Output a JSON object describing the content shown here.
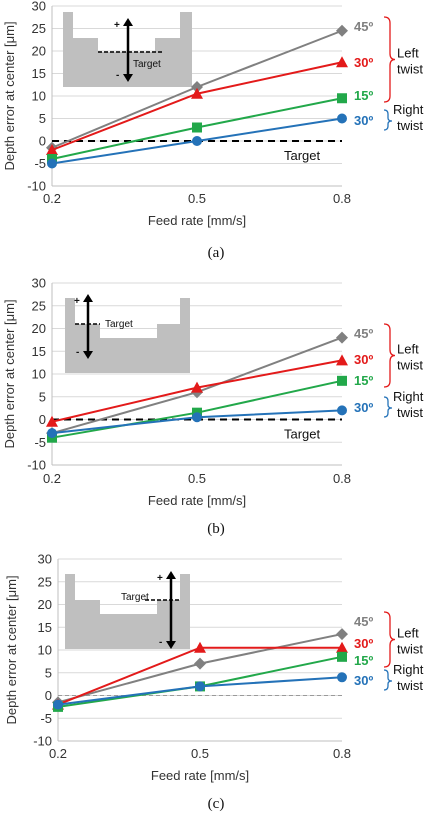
{
  "colors": {
    "45": "#808080",
    "30L": "#e31a1a",
    "15": "#22a84a",
    "30R": "#2472b8",
    "right_bracket": "#2472b8",
    "left_bracket": "#e31a1a",
    "inset": "#bfbfbf",
    "grid": "#d9d9d9"
  },
  "chart_data": [
    {
      "type": "line",
      "caption": "(a)",
      "xlabel": "Feed rate [mm/s]",
      "ylabel": "Depth error at center [μm]",
      "categories": [
        "0.2",
        "0.5",
        "0.8"
      ],
      "ylim": [
        -10,
        30
      ],
      "yticks": [
        -10,
        -5,
        0,
        5,
        10,
        15,
        20,
        25,
        30
      ],
      "grid": true,
      "target_line": {
        "value": 0,
        "label": "Target",
        "style": "dashed-bold"
      },
      "inset": {
        "label": "Target",
        "variant": "a",
        "plus": "+",
        "minus": "-"
      },
      "series": [
        {
          "key": "45",
          "name": "45º",
          "marker": "diamond",
          "values": [
            -1.5,
            12,
            24.5
          ]
        },
        {
          "key": "30L",
          "name": "30º",
          "marker": "triangle",
          "values": [
            -2,
            10.5,
            17.5
          ]
        },
        {
          "key": "15",
          "name": "15º",
          "marker": "square",
          "values": [
            -4,
            3,
            9.5
          ]
        },
        {
          "key": "30R",
          "name": "30º",
          "marker": "circle",
          "values": [
            -5,
            0,
            5
          ]
        }
      ],
      "groups": {
        "left": [
          "Left",
          "twist"
        ],
        "right": [
          "Right",
          "twist"
        ]
      }
    },
    {
      "type": "line",
      "caption": "(b)",
      "xlabel": "Feed rate [mm/s]",
      "ylabel": "Depth error at center [μm]",
      "categories": [
        "0.2",
        "0.5",
        "0.8"
      ],
      "ylim": [
        -10,
        30
      ],
      "yticks": [
        -10,
        -5,
        0,
        5,
        10,
        15,
        20,
        25,
        30
      ],
      "grid": true,
      "target_line": {
        "value": 0,
        "label": "Target",
        "style": "dashed-bold"
      },
      "inset": {
        "label": "Target",
        "variant": "b",
        "plus": "+",
        "minus": "-"
      },
      "series": [
        {
          "key": "45",
          "name": "45º",
          "marker": "diamond",
          "values": [
            -3,
            6,
            18
          ]
        },
        {
          "key": "30L",
          "name": "30º",
          "marker": "triangle",
          "values": [
            -0.5,
            7,
            13
          ]
        },
        {
          "key": "15",
          "name": "15º",
          "marker": "square",
          "values": [
            -4,
            1.5,
            8.5
          ]
        },
        {
          "key": "30R",
          "name": "30º",
          "marker": "circle",
          "values": [
            -3,
            0.5,
            2
          ]
        }
      ],
      "groups": {
        "left": [
          "Left",
          "twist"
        ],
        "right": [
          "Right",
          "twist"
        ]
      }
    },
    {
      "type": "line",
      "caption": "(c)",
      "xlabel": "Feed rate [mm/s]",
      "ylabel": "Depth error at center [μm]",
      "categories": [
        "0.2",
        "0.5",
        "0.8"
      ],
      "ylim": [
        -10,
        30
      ],
      "yticks": [
        -10,
        -5,
        0,
        5,
        10,
        15,
        20,
        25,
        30
      ],
      "grid": true,
      "target_line": {
        "value": 0,
        "label": "",
        "style": "dashed-thin"
      },
      "inset": {
        "label": "Target",
        "variant": "c",
        "plus": "+",
        "minus": "-"
      },
      "series": [
        {
          "key": "45",
          "name": "45º",
          "marker": "diamond",
          "values": [
            -1.5,
            7,
            13.5
          ]
        },
        {
          "key": "30L",
          "name": "30º",
          "marker": "triangle",
          "values": [
            -2,
            10.5,
            10.5
          ]
        },
        {
          "key": "15",
          "name": "15º",
          "marker": "square",
          "values": [
            -2.5,
            2,
            8.5
          ]
        },
        {
          "key": "30R",
          "name": "30º",
          "marker": "circle",
          "values": [
            -2,
            2,
            4
          ]
        }
      ],
      "groups": {
        "left": [
          "Left",
          "twist"
        ],
        "right": [
          "Right",
          "twist"
        ]
      }
    }
  ]
}
